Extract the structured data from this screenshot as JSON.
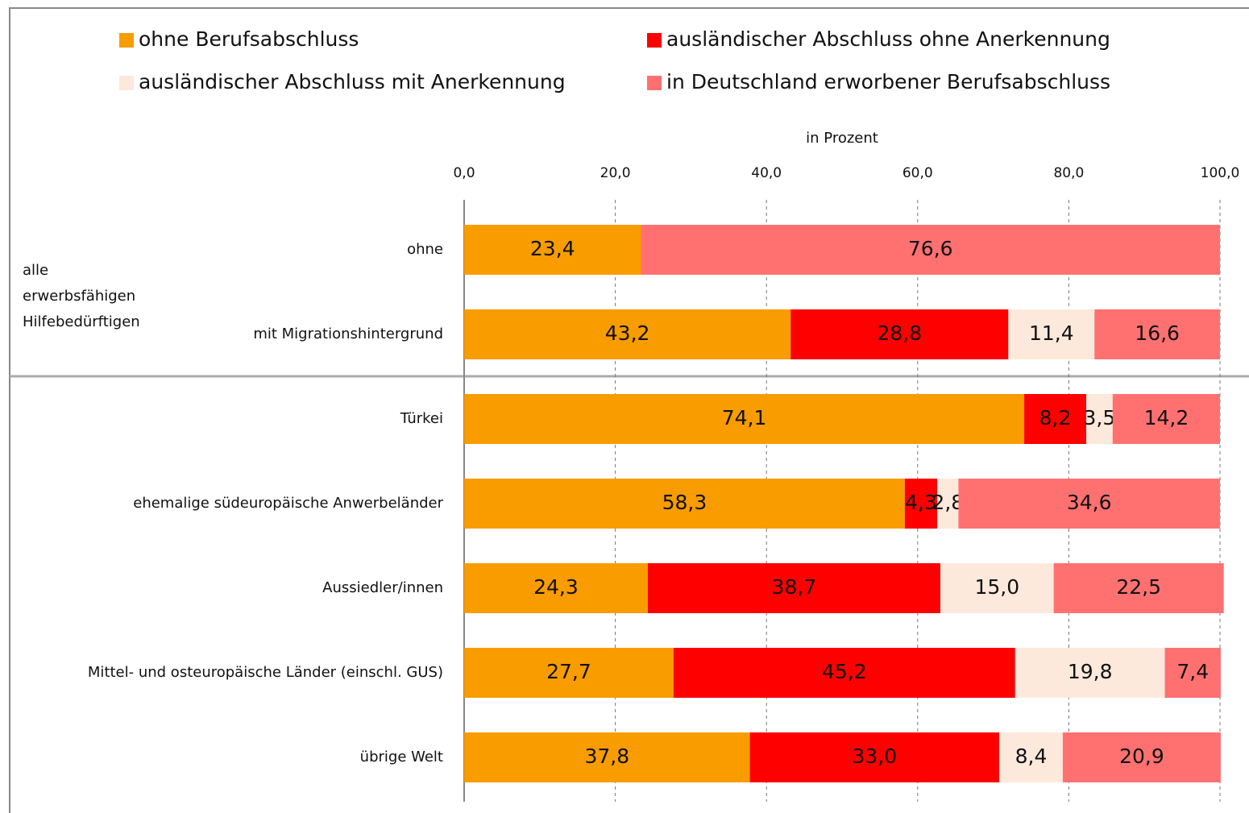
{
  "chart_data": {
    "type": "stacked-bar-horizontal",
    "axis_title": "in Prozent",
    "group_label": "alle erwerbsfähigen Hilfebedürftigen",
    "categories": [
      "ohne",
      "mit Migrationshintergrund",
      "Türkei",
      "ehemalige südeuropäische Anwerbeländer",
      "Aussiedler/innen",
      "Mittel- und osteuropäische Länder (einschl. GUS)",
      "übrige Welt"
    ],
    "series": [
      {
        "name": "ohne Berufsabschluss",
        "color": "#f89c00",
        "values": [
          23.4,
          43.2,
          74.1,
          58.3,
          24.3,
          27.7,
          37.8
        ],
        "value_labels": [
          "23,4",
          "43,2",
          "74,1",
          "58,3",
          "24,3",
          "27,7",
          "37,8"
        ]
      },
      {
        "name": "ausländischer Abschluss ohne Anerkennung",
        "color": "#fe0000",
        "values": [
          null,
          28.8,
          8.2,
          4.3,
          38.7,
          45.2,
          33.0
        ],
        "value_labels": [
          null,
          "28,8",
          "8,2",
          "4,3",
          "38,7",
          "45,2",
          "33,0"
        ]
      },
      {
        "name": "ausländischer Abschluss mit Anerkennung",
        "color": "#fde9dc",
        "values": [
          null,
          11.4,
          3.5,
          2.8,
          15.0,
          19.8,
          8.4
        ],
        "value_labels": [
          null,
          "11,4",
          "3,5",
          "2,8",
          "15,0",
          "19,8",
          "8,4"
        ]
      },
      {
        "name": "in Deutschland erworbener Berufsabschluss",
        "color": "#ff7171",
        "values": [
          76.6,
          16.6,
          14.2,
          34.6,
          22.5,
          7.4,
          20.9
        ],
        "value_labels": [
          "76,6",
          "16,6",
          "14,2",
          "34,6",
          "22,5",
          "7,4",
          "20,9"
        ]
      }
    ],
    "xlim": [
      0,
      100
    ],
    "xticks": [
      {
        "value": 0,
        "label": "0,0"
      },
      {
        "value": 20,
        "label": "20,0"
      },
      {
        "value": 40,
        "label": "40,0"
      },
      {
        "value": 60,
        "label": "60,0"
      },
      {
        "value": 80,
        "label": "80,0"
      },
      {
        "value": 100,
        "label": "100,0"
      }
    ],
    "grid": true
  }
}
